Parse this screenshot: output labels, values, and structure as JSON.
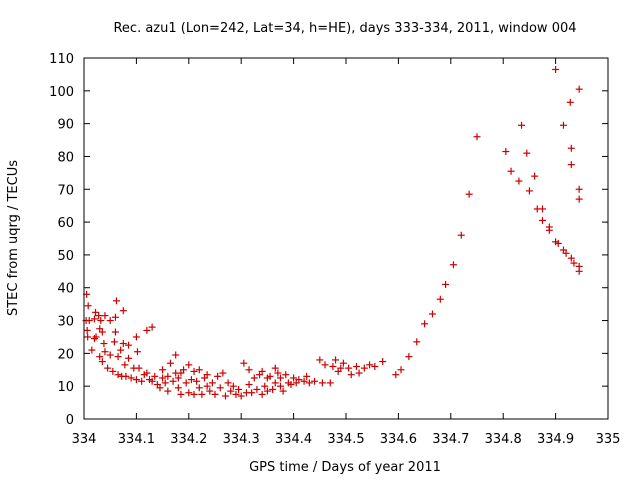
{
  "chart_data": {
    "type": "scatter",
    "title": "Rec. azu1 (Lon=242, Lat=34, h=HE), days 333-334, 2011, window 004",
    "xlabel": "GPS time / Days of year 2011",
    "ylabel": "STEC from uqrg / TECUs",
    "xlim": [
      334,
      335
    ],
    "ylim": [
      0,
      110
    ],
    "xticks": [
      334,
      334.1,
      334.2,
      334.3,
      334.4,
      334.5,
      334.6,
      334.7,
      334.8,
      334.9,
      335
    ],
    "xtick_labels": [
      "334",
      "334.1",
      "334.2",
      "334.3",
      "334.4",
      "334.5",
      "334.6",
      "334.7",
      "334.8",
      "334.9",
      "335"
    ],
    "yticks": [
      0,
      10,
      20,
      30,
      40,
      50,
      60,
      70,
      80,
      90,
      100,
      110
    ],
    "ytick_labels": [
      "0",
      "10",
      "20",
      "30",
      "40",
      "50",
      "60",
      "70",
      "80",
      "90",
      "100",
      "110"
    ],
    "grid": false,
    "marker": "+",
    "color": "#cc0000",
    "points": [
      [
        334.005,
        38
      ],
      [
        334.008,
        34.5
      ],
      [
        334.004,
        30
      ],
      [
        334.01,
        30
      ],
      [
        334.006,
        27
      ],
      [
        334.007,
        25
      ],
      [
        334.015,
        21
      ],
      [
        334.02,
        24.5
      ],
      [
        334.02,
        30.5
      ],
      [
        334.022,
        32.5
      ],
      [
        334.023,
        25
      ],
      [
        334.028,
        31.5
      ],
      [
        334.03,
        27.5
      ],
      [
        334.03,
        19
      ],
      [
        334.032,
        30
      ],
      [
        334.035,
        26.5
      ],
      [
        334.035,
        17.5
      ],
      [
        334.038,
        23
      ],
      [
        334.04,
        31.5
      ],
      [
        334.04,
        20.5
      ],
      [
        334.045,
        15.5
      ],
      [
        334.05,
        30
      ],
      [
        334.05,
        19.5
      ],
      [
        334.055,
        14.5
      ],
      [
        334.058,
        23.5
      ],
      [
        334.06,
        31
      ],
      [
        334.06,
        26.5
      ],
      [
        334.062,
        36
      ],
      [
        334.065,
        19
      ],
      [
        334.065,
        13.5
      ],
      [
        334.07,
        21
      ],
      [
        334.072,
        13
      ],
      [
        334.075,
        33
      ],
      [
        334.075,
        23
      ],
      [
        334.078,
        16.5
      ],
      [
        334.08,
        13
      ],
      [
        334.085,
        22.5
      ],
      [
        334.085,
        18.5
      ],
      [
        334.09,
        12.5
      ],
      [
        334.095,
        15.5
      ],
      [
        334.1,
        25
      ],
      [
        334.1,
        12
      ],
      [
        334.102,
        20.5
      ],
      [
        334.105,
        15.5
      ],
      [
        334.11,
        11.5
      ],
      [
        334.115,
        13.5
      ],
      [
        334.12,
        27
      ],
      [
        334.12,
        14
      ],
      [
        334.125,
        12
      ],
      [
        334.13,
        28
      ],
      [
        334.13,
        11.5
      ],
      [
        334.135,
        13
      ],
      [
        334.14,
        10.5
      ],
      [
        334.145,
        9.5
      ],
      [
        334.15,
        15
      ],
      [
        334.15,
        12.5
      ],
      [
        334.155,
        11
      ],
      [
        334.16,
        8.5
      ],
      [
        334.16,
        13
      ],
      [
        334.165,
        17
      ],
      [
        334.17,
        11.5
      ],
      [
        334.175,
        14
      ],
      [
        334.175,
        19.5
      ],
      [
        334.18,
        9.5
      ],
      [
        334.18,
        12.5
      ],
      [
        334.185,
        7.5
      ],
      [
        334.185,
        14
      ],
      [
        334.19,
        15
      ],
      [
        334.195,
        11
      ],
      [
        334.2,
        16.5
      ],
      [
        334.2,
        8
      ],
      [
        334.205,
        12
      ],
      [
        334.21,
        14.5
      ],
      [
        334.21,
        7.5
      ],
      [
        334.215,
        11.5
      ],
      [
        334.22,
        15
      ],
      [
        334.22,
        9.5
      ],
      [
        334.225,
        7.5
      ],
      [
        334.23,
        12.5
      ],
      [
        334.235,
        10
      ],
      [
        334.235,
        13.5
      ],
      [
        334.24,
        8.5
      ],
      [
        334.245,
        11
      ],
      [
        334.25,
        7.5
      ],
      [
        334.255,
        13
      ],
      [
        334.26,
        9.5
      ],
      [
        334.265,
        14
      ],
      [
        334.27,
        7
      ],
      [
        334.275,
        11
      ],
      [
        334.28,
        8.5
      ],
      [
        334.285,
        10
      ],
      [
        334.29,
        7.5
      ],
      [
        334.295,
        9
      ],
      [
        334.3,
        7
      ],
      [
        334.305,
        17
      ],
      [
        334.31,
        8
      ],
      [
        334.315,
        15
      ],
      [
        334.315,
        10.5
      ],
      [
        334.32,
        8
      ],
      [
        334.325,
        12.5
      ],
      [
        334.33,
        9
      ],
      [
        334.335,
        13.5
      ],
      [
        334.34,
        7.5
      ],
      [
        334.34,
        14.5
      ],
      [
        334.345,
        10
      ],
      [
        334.35,
        8.5
      ],
      [
        334.35,
        12.5
      ],
      [
        334.355,
        13
      ],
      [
        334.36,
        9
      ],
      [
        334.365,
        15.5
      ],
      [
        334.365,
        11
      ],
      [
        334.37,
        14
      ],
      [
        334.375,
        10
      ],
      [
        334.375,
        12.5
      ],
      [
        334.38,
        8.5
      ],
      [
        334.385,
        13.5
      ],
      [
        334.39,
        11
      ],
      [
        334.395,
        10.5
      ],
      [
        334.4,
        12.5
      ],
      [
        334.405,
        11
      ],
      [
        334.41,
        12
      ],
      [
        334.42,
        11.5
      ],
      [
        334.425,
        13
      ],
      [
        334.43,
        11
      ],
      [
        334.44,
        11.5
      ],
      [
        334.45,
        18
      ],
      [
        334.455,
        11
      ],
      [
        334.46,
        16.5
      ],
      [
        334.47,
        11
      ],
      [
        334.475,
        16
      ],
      [
        334.48,
        18
      ],
      [
        334.485,
        14.5
      ],
      [
        334.49,
        15.5
      ],
      [
        334.495,
        17
      ],
      [
        334.505,
        15.5
      ],
      [
        334.51,
        13.5
      ],
      [
        334.52,
        16
      ],
      [
        334.525,
        14
      ],
      [
        334.535,
        15.5
      ],
      [
        334.545,
        16.5
      ],
      [
        334.555,
        16
      ],
      [
        334.57,
        17.5
      ],
      [
        334.595,
        13.5
      ],
      [
        334.605,
        15
      ],
      [
        334.62,
        19
      ],
      [
        334.635,
        23.5
      ],
      [
        334.65,
        29
      ],
      [
        334.665,
        32
      ],
      [
        334.68,
        36.5
      ],
      [
        334.69,
        41
      ],
      [
        334.705,
        47
      ],
      [
        334.72,
        56
      ],
      [
        334.735,
        68.5
      ],
      [
        334.75,
        86
      ],
      [
        334.805,
        81.5
      ],
      [
        334.815,
        75.5
      ],
      [
        334.83,
        72.5
      ],
      [
        334.835,
        89.5
      ],
      [
        334.845,
        81
      ],
      [
        334.85,
        69.5
      ],
      [
        334.86,
        74
      ],
      [
        334.865,
        64
      ],
      [
        334.875,
        64
      ],
      [
        334.875,
        60.5
      ],
      [
        334.888,
        57.5
      ],
      [
        334.888,
        58.5
      ],
      [
        334.9,
        106.5
      ],
      [
        334.9,
        54
      ],
      [
        334.905,
        53.5
      ],
      [
        334.915,
        89.5
      ],
      [
        334.915,
        51.5
      ],
      [
        334.92,
        50.5
      ],
      [
        334.928,
        96.5
      ],
      [
        334.93,
        82.5
      ],
      [
        334.93,
        77.5
      ],
      [
        334.93,
        49
      ],
      [
        334.935,
        47.5
      ],
      [
        334.945,
        100.5
      ],
      [
        334.945,
        70
      ],
      [
        334.945,
        67
      ],
      [
        334.945,
        46.5
      ],
      [
        334.945,
        45
      ]
    ]
  }
}
